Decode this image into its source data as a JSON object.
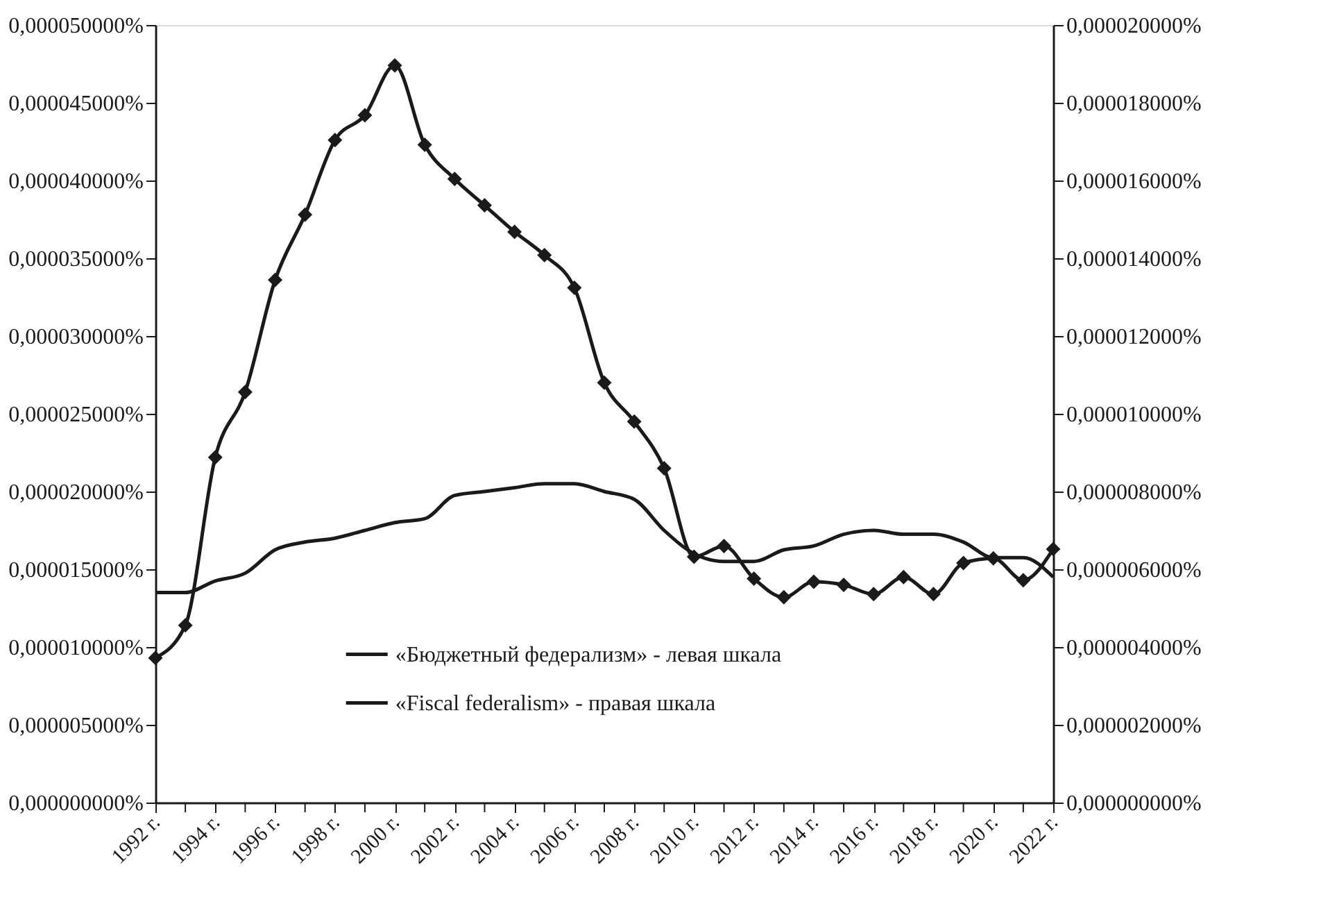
{
  "chart_data": {
    "type": "line",
    "x": [
      1992,
      1993,
      1994,
      1995,
      1996,
      1997,
      1998,
      1999,
      2000,
      2001,
      2002,
      2003,
      2004,
      2005,
      2006,
      2007,
      2008,
      2009,
      2010,
      2011,
      2012,
      2013,
      2014,
      2015,
      2016,
      2017,
      2018,
      2019,
      2020,
      2021,
      2022
    ],
    "xlim": [
      1992,
      2022
    ],
    "xticks": [
      {
        "value": 1992,
        "label": "1992 г."
      },
      {
        "value": 1993,
        "label": null
      },
      {
        "value": 1994,
        "label": "1994 г."
      },
      {
        "value": 1995,
        "label": null
      },
      {
        "value": 1996,
        "label": "1996 г."
      },
      {
        "value": 1997,
        "label": null
      },
      {
        "value": 1998,
        "label": "1998 г."
      },
      {
        "value": 1999,
        "label": null
      },
      {
        "value": 2000,
        "label": "2000 г."
      },
      {
        "value": 2001,
        "label": null
      },
      {
        "value": 2002,
        "label": "2002 г."
      },
      {
        "value": 2003,
        "label": null
      },
      {
        "value": 2004,
        "label": "2004 г."
      },
      {
        "value": 2005,
        "label": null
      },
      {
        "value": 2006,
        "label": "2006 г."
      },
      {
        "value": 2007,
        "label": null
      },
      {
        "value": 2008,
        "label": "2008 г."
      },
      {
        "value": 2009,
        "label": null
      },
      {
        "value": 2010,
        "label": "2010 г."
      },
      {
        "value": 2011,
        "label": null
      },
      {
        "value": 2012,
        "label": "2012 г."
      },
      {
        "value": 2013,
        "label": null
      },
      {
        "value": 2014,
        "label": "2014 г."
      },
      {
        "value": 2015,
        "label": null
      },
      {
        "value": 2016,
        "label": "2016 г."
      },
      {
        "value": 2017,
        "label": null
      },
      {
        "value": 2018,
        "label": "2018 г."
      },
      {
        "value": 2019,
        "label": null
      },
      {
        "value": 2020,
        "label": "2020 г."
      },
      {
        "value": 2021,
        "label": null
      },
      {
        "value": 2022,
        "label": "2022 г."
      }
    ],
    "ylim": [
      0,
      5e-05
    ],
    "yticks": [
      {
        "value": 0,
        "label": "0,000000000%"
      },
      {
        "value": 5e-06,
        "label": "0,000005000%"
      },
      {
        "value": 1e-05,
        "label": "0,000010000%"
      },
      {
        "value": 1.5e-05,
        "label": "0,000015000%"
      },
      {
        "value": 2e-05,
        "label": "0,000020000%"
      },
      {
        "value": 2.5e-05,
        "label": "0,000025000%"
      },
      {
        "value": 3e-05,
        "label": "0,000030000%"
      },
      {
        "value": 3.5e-05,
        "label": "0,000035000%"
      },
      {
        "value": 4e-05,
        "label": "0,000040000%"
      },
      {
        "value": 4.5e-05,
        "label": "0,000045000%"
      },
      {
        "value": 5e-05,
        "label": "0,000050000%"
      }
    ],
    "y2lim": [
      0,
      2e-05
    ],
    "y2ticks": [
      {
        "value": 0,
        "label": "0,000000000%"
      },
      {
        "value": 2e-06,
        "label": "0,000002000%"
      },
      {
        "value": 4e-06,
        "label": "0,000004000%"
      },
      {
        "value": 6e-06,
        "label": "0,000006000%"
      },
      {
        "value": 8e-06,
        "label": "0,000008000%"
      },
      {
        "value": 1e-05,
        "label": "0,000010000%"
      },
      {
        "value": 1.2e-05,
        "label": "0,000012000%"
      },
      {
        "value": 1.4e-05,
        "label": "0,000014000%"
      },
      {
        "value": 1.6e-05,
        "label": "0,000016000%"
      },
      {
        "value": 1.8e-05,
        "label": "0,000018000%"
      },
      {
        "value": 2e-05,
        "label": "0,000020000%"
      }
    ],
    "series": [
      {
        "name": "«Бюджетный федерализм» - левая шкала",
        "color": "#1a1a1a",
        "marker": "diamond",
        "values": [
          9.3e-06,
          1.14e-05,
          2.22e-05,
          2.64e-05,
          3.36e-05,
          3.78e-05,
          4.26e-05,
          4.42e-05,
          4.74e-05,
          4.23e-05,
          4.01e-05,
          3.84e-05,
          3.67e-05,
          3.52e-05,
          3.31e-05,
          2.7e-05,
          2.45e-05,
          2.15e-05,
          1.58e-05,
          1.65e-05,
          1.44e-05,
          1.32e-05,
          1.42e-05,
          1.4e-05,
          1.34e-05,
          1.45e-05,
          1.34e-05,
          1.54e-05,
          1.57e-05,
          1.43e-05,
          1.63e-05
        ]
      },
      {
        "name": "«Fiscal federalism» - правая шкала",
        "color": "#1a1a1a",
        "marker": "none",
        "axis": "y2",
        "values": [
          5.4e-06,
          5.4e-06,
          5.7e-06,
          5.9e-06,
          6.5e-06,
          6.7e-06,
          6.8e-06,
          7e-06,
          7.2e-06,
          7.3e-06,
          7.9e-06,
          8e-06,
          8.1e-06,
          8.2e-06,
          8.2e-06,
          8e-06,
          7.8e-06,
          7e-06,
          6.4e-06,
          6.2e-06,
          6.2e-06,
          6.5e-06,
          6.6e-06,
          6.9e-06,
          7e-06,
          6.9e-06,
          6.9e-06,
          6.7e-06,
          6.3e-06,
          6.3e-06,
          5.8e-06
        ]
      }
    ],
    "legend": "bottom",
    "grid": false
  }
}
